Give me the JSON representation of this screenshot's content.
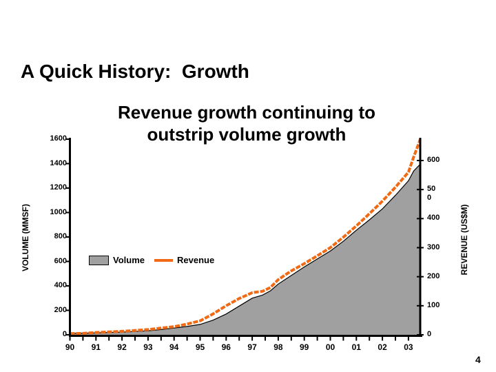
{
  "slide": {
    "title": "A Quick History:  Growth",
    "page_number": "4"
  },
  "chart_data": {
    "type": "combo-area-line",
    "title": "Revenue growth continuing to\noutstrip volume growth",
    "x": [
      1990,
      1990.5,
      1991,
      1991.5,
      1992,
      1992.5,
      1993,
      1993.5,
      1994,
      1994.5,
      1995,
      1995.5,
      1996,
      1996.5,
      1997,
      1997.4,
      1997.7,
      1998,
      1998.5,
      1999,
      1999.5,
      2000,
      2000.5,
      2001,
      2001.5,
      2002,
      2002.5,
      2003,
      2003.2,
      2003.45
    ],
    "series": [
      {
        "name": "Volume",
        "type": "area",
        "axis": "left",
        "units": "MMSF",
        "color": "#A0A0A0",
        "outline_color": "#000000",
        "values": [
          12,
          13,
          16,
          19,
          22,
          27,
          33,
          43,
          55,
          68,
          85,
          120,
          170,
          235,
          300,
          325,
          360,
          415,
          485,
          555,
          620,
          685,
          765,
          855,
          940,
          1030,
          1140,
          1260,
          1340,
          1395
        ]
      },
      {
        "name": "Revenue",
        "type": "line",
        "axis": "right",
        "units": "US$M",
        "color": "#F06914",
        "values": [
          4,
          5,
          8,
          10,
          12,
          15,
          18,
          23,
          28,
          37,
          48,
          72,
          100,
          125,
          145,
          150,
          163,
          190,
          220,
          245,
          272,
          300,
          336,
          375,
          417,
          460,
          508,
          560,
          612,
          672
        ]
      }
    ],
    "left_axis": {
      "title": "VOLUME (MMSF)",
      "min": 0,
      "max": 1600,
      "tick_step": 200,
      "tick_labels_top_to_bottom": [
        "1600",
        "1400",
        "1200",
        "1000",
        "800",
        "600",
        "400",
        "200",
        "0"
      ]
    },
    "right_axis": {
      "title": "REVENUE (US$M)",
      "min": 0,
      "max": 600,
      "tick_step": 100,
      "tick_labels_top_to_bottom": [
        "600",
        "50\n0",
        "400",
        "300",
        "200",
        "100",
        "0"
      ]
    },
    "x_axis": {
      "tick_labels": [
        "90",
        "91",
        "92",
        "93",
        "94",
        "95",
        "96",
        "97",
        "98",
        "99",
        "00",
        "01",
        "02",
        "03"
      ],
      "minor_ticks_per_year": 2
    },
    "legend": {
      "items": [
        "Volume",
        "Revenue"
      ],
      "position": "middle-left"
    }
  }
}
